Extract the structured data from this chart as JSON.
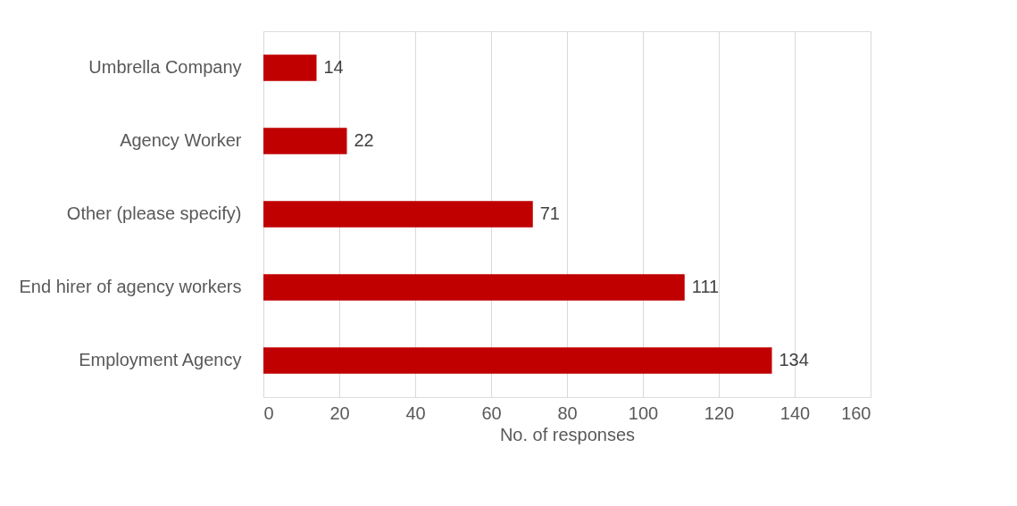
{
  "chart_data": {
    "type": "bar",
    "orientation": "horizontal",
    "categories": [
      "Umbrella Company",
      "Agency Worker",
      "Other (please specify)",
      "End hirer of agency workers",
      "Employment Agency"
    ],
    "values": [
      14,
      22,
      71,
      111,
      134
    ],
    "color": "#c00000",
    "xlabel": "No. of responses",
    "xlim": [
      0,
      160
    ],
    "xticks": [
      0,
      20,
      40,
      60,
      80,
      100,
      120,
      140,
      160
    ],
    "grid": "x",
    "data_labels": true
  }
}
